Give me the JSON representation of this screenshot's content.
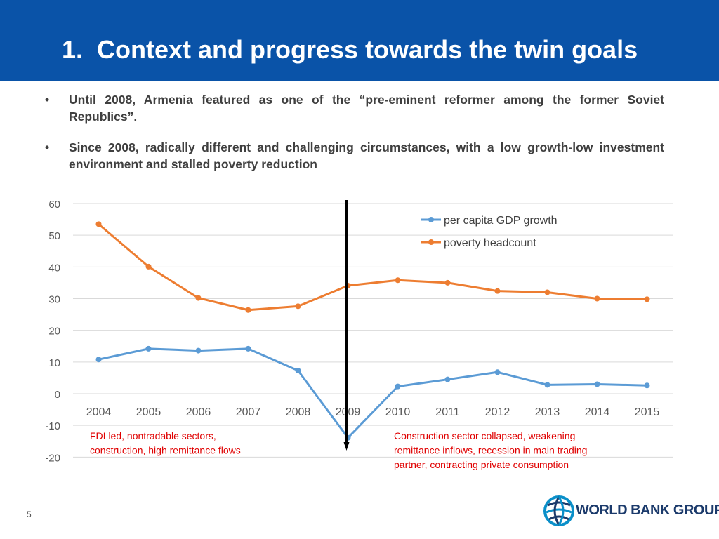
{
  "header": {
    "number": "1.",
    "title": "Context and progress towards the twin goals"
  },
  "bullets": [
    {
      "marker": "•",
      "text": "Until 2008, Armenia featured as one of the “pre-eminent reformer among the former Soviet Republics”."
    },
    {
      "marker": "•",
      "text": "Since 2008, radically different and challenging circumstances, with a low growth-low investment environment and stalled poverty reduction"
    }
  ],
  "colors": {
    "header_bg": "#0a53a8",
    "gdp": "#5b9bd5",
    "poverty": "#ed7d31",
    "annotation": "#e00000",
    "grid": "#d9d9d9"
  },
  "chart_data": {
    "type": "line",
    "categories": [
      "2004",
      "2005",
      "2006",
      "2007",
      "2008",
      "2009",
      "2010",
      "2011",
      "2012",
      "2013",
      "2014",
      "2015"
    ],
    "series": [
      {
        "name": "per capita GDP growth",
        "values": [
          10.8,
          14.2,
          13.6,
          14.2,
          7.3,
          -13.9,
          2.3,
          4.5,
          6.8,
          2.8,
          3.0,
          2.6
        ]
      },
      {
        "name": "poverty headcount",
        "values": [
          53.5,
          40.1,
          30.2,
          26.4,
          27.6,
          34.1,
          35.8,
          35.0,
          32.4,
          32.0,
          30.0,
          29.8
        ]
      }
    ],
    "yticks": [
      60,
      50,
      40,
      30,
      20,
      10,
      0,
      -10,
      -20
    ],
    "ylim": [
      -20,
      60
    ],
    "grid": true,
    "legend_position": "top-right",
    "divider_year": "2009",
    "annotations": [
      {
        "lines": [
          "FDI led, nontradable sectors,",
          "construction, high remittance flows"
        ]
      },
      {
        "lines": [
          "Construction sector collapsed, weakening",
          "remittance inflows, recession in main trading",
          "partner, contracting private consumption"
        ]
      }
    ]
  },
  "footer": {
    "page_number": "5",
    "logo_text": "WORLD BANK GROUP"
  }
}
